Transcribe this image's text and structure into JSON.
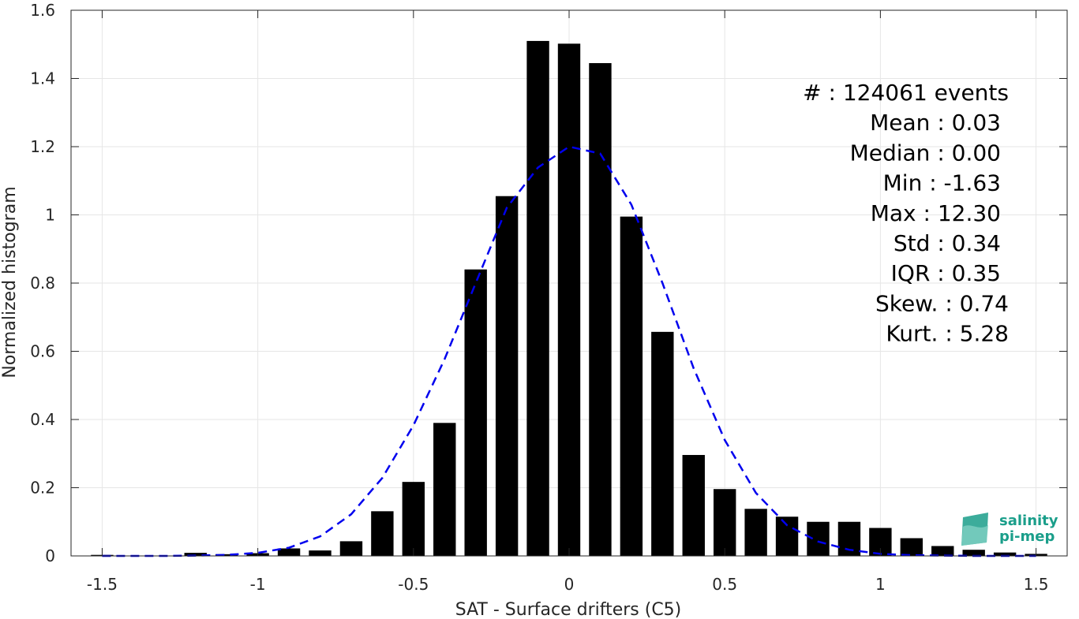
{
  "chart_data": {
    "type": "bar",
    "xlabel": "SAT - Surface drifters (C5)",
    "ylabel": "Normalized histogram",
    "xlim": [
      -1.6,
      1.6
    ],
    "ylim": [
      0,
      1.6
    ],
    "xticks": [
      -1.5,
      -1,
      -0.5,
      0,
      0.5,
      1,
      1.5
    ],
    "xtick_labels": [
      "-1.5",
      "-1",
      "-0.5",
      "0",
      "0.5",
      "1",
      "1.5"
    ],
    "yticks": [
      0,
      0.2,
      0.4,
      0.6,
      0.8,
      1,
      1.2,
      1.4,
      1.6
    ],
    "ytick_labels": [
      "0",
      "0.2",
      "0.4",
      "0.6",
      "0.8",
      "1",
      "1.2",
      "1.4",
      "1.6"
    ],
    "grid": true,
    "bar_color": "#000000",
    "fit_color": "#0000ee",
    "x": [
      -1.5,
      -1.4,
      -1.3,
      -1.2,
      -1.1,
      -1.0,
      -0.9,
      -0.8,
      -0.7,
      -0.6,
      -0.5,
      -0.4,
      -0.3,
      -0.2,
      -0.1,
      0.0,
      0.1,
      0.2,
      0.3,
      0.4,
      0.5,
      0.6,
      0.7,
      0.8,
      0.9,
      1.0,
      1.1,
      1.2,
      1.3,
      1.4,
      1.5
    ],
    "values": [
      0.003,
      0.0,
      0.0,
      0.009,
      0.005,
      0.008,
      0.022,
      0.016,
      0.043,
      0.131,
      0.217,
      0.39,
      0.84,
      1.055,
      1.51,
      1.502,
      1.445,
      0.995,
      0.657,
      0.296,
      0.196,
      0.138,
      0.115,
      0.1,
      0.1,
      0.082,
      0.052,
      0.029,
      0.018,
      0.01,
      0.006
    ],
    "fit_curve": {
      "style": "dashed",
      "x": [
        -1.5,
        -1.4,
        -1.3,
        -1.2,
        -1.1,
        -1.0,
        -0.9,
        -0.8,
        -0.7,
        -0.6,
        -0.5,
        -0.4,
        -0.3,
        -0.2,
        -0.1,
        0.0,
        0.1,
        0.2,
        0.3,
        0.4,
        0.5,
        0.6,
        0.7,
        0.8,
        0.9,
        1.0,
        1.1,
        1.2,
        1.3,
        1.4,
        1.5
      ],
      "y": [
        0.0,
        0.0,
        0.0,
        0.001,
        0.003,
        0.009,
        0.024,
        0.057,
        0.122,
        0.229,
        0.383,
        0.577,
        0.8,
        1.021,
        1.139,
        1.2,
        1.18,
        1.03,
        0.8,
        0.55,
        0.34,
        0.185,
        0.09,
        0.042,
        0.018,
        0.006,
        0.002,
        0.001,
        0.0,
        0.0,
        0.0
      ]
    },
    "stats": [
      {
        "label": "#  : 124061 events"
      },
      {
        "label": "Mean : 0.03"
      },
      {
        "label": "Median : 0.00"
      },
      {
        "label": "Min : -1.63"
      },
      {
        "label": "Max : 12.30"
      },
      {
        "label": "Std : 0.34"
      },
      {
        "label": "IQR : 0.35"
      },
      {
        "label": "Skew. : 0.74"
      },
      {
        "label": "Kurt. : 5.28"
      }
    ]
  },
  "logo": {
    "line1": "salinity",
    "line2": "pi-mep",
    "color": "#1a9e8a"
  }
}
